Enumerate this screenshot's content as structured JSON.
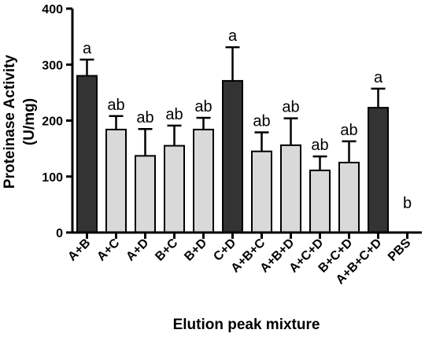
{
  "chart_data": {
    "type": "bar",
    "xlabel": "Elution peak mixture",
    "ylabel_line1": "Proteinase Activity",
    "ylabel_line2": "(U/mg)",
    "ylim": [
      0,
      400
    ],
    "yticks": [
      "0",
      "100",
      "200",
      "300",
      "400"
    ],
    "categories": [
      "A+B",
      "A+C",
      "A+D",
      "B+C",
      "B+D",
      "C+D",
      "A+B+C",
      "A+B+D",
      "A+C+D",
      "B+C+D",
      "A+B+C+D",
      "PBS"
    ],
    "values": [
      280,
      184,
      137,
      155,
      184,
      271,
      145,
      156,
      111,
      125,
      223,
      0
    ],
    "errors": [
      29,
      24,
      48,
      36,
      21,
      60,
      34,
      48,
      25,
      38,
      34,
      0
    ],
    "letters": [
      "a",
      "ab",
      "ab",
      "ab",
      "ab",
      "a",
      "ab",
      "ab",
      "ab",
      "ab",
      "a",
      "b"
    ],
    "bar_styles": [
      "dark",
      "light",
      "light",
      "light",
      "light",
      "dark",
      "light",
      "light",
      "light",
      "light",
      "dark",
      "none"
    ],
    "colors": {
      "dark": "#333333",
      "light": "#d9d9d9",
      "axis": "#000000"
    }
  }
}
